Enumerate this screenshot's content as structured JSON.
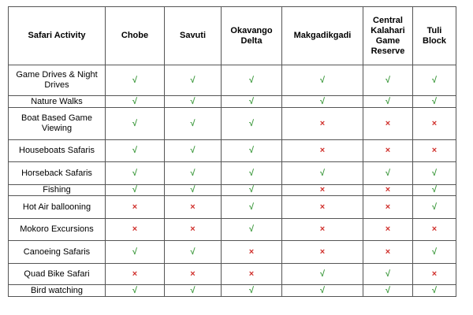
{
  "table": {
    "header": [
      "Safari Activity",
      "Chobe",
      "Savuti",
      "Okavango Delta",
      "Makgadikgadi",
      "Central Kalahari Game Reserve",
      "Tuli Block"
    ],
    "symbol_colors": {
      "√": "#3f9a3f",
      "×": "#d0312d"
    },
    "rows": [
      [
        "Game Drives & Night Drives",
        "√",
        "√",
        "√",
        "√",
        "√",
        "√"
      ],
      [
        "Nature Walks",
        "√",
        "√",
        "√",
        "√",
        "√",
        "√"
      ],
      [
        "Boat Based Game Viewing",
        "√",
        "√",
        "√",
        "×",
        "×",
        "×"
      ],
      [
        "Houseboats Safaris",
        "√",
        "√",
        "√",
        "×",
        "×",
        "×"
      ],
      [
        "Horseback Safaris",
        "√",
        "√",
        "√",
        "√",
        "√",
        "√"
      ],
      [
        "Fishing",
        "√",
        "√",
        "√",
        "×",
        "×",
        "√"
      ],
      [
        "Hot Air ballooning",
        "×",
        "×",
        "√",
        "×",
        "×",
        "√"
      ],
      [
        "Mokoro Excursions",
        "×",
        "×",
        "√",
        "×",
        "×",
        "×"
      ],
      [
        "Canoeing Safaris",
        "√",
        "√",
        "×",
        "×",
        "×",
        "√"
      ],
      [
        "Quad Bike Safari",
        "×",
        "×",
        "×",
        "√",
        "√",
        "×"
      ],
      [
        "Bird watching",
        "√",
        "√",
        "√",
        "√",
        "√",
        "√"
      ]
    ]
  }
}
